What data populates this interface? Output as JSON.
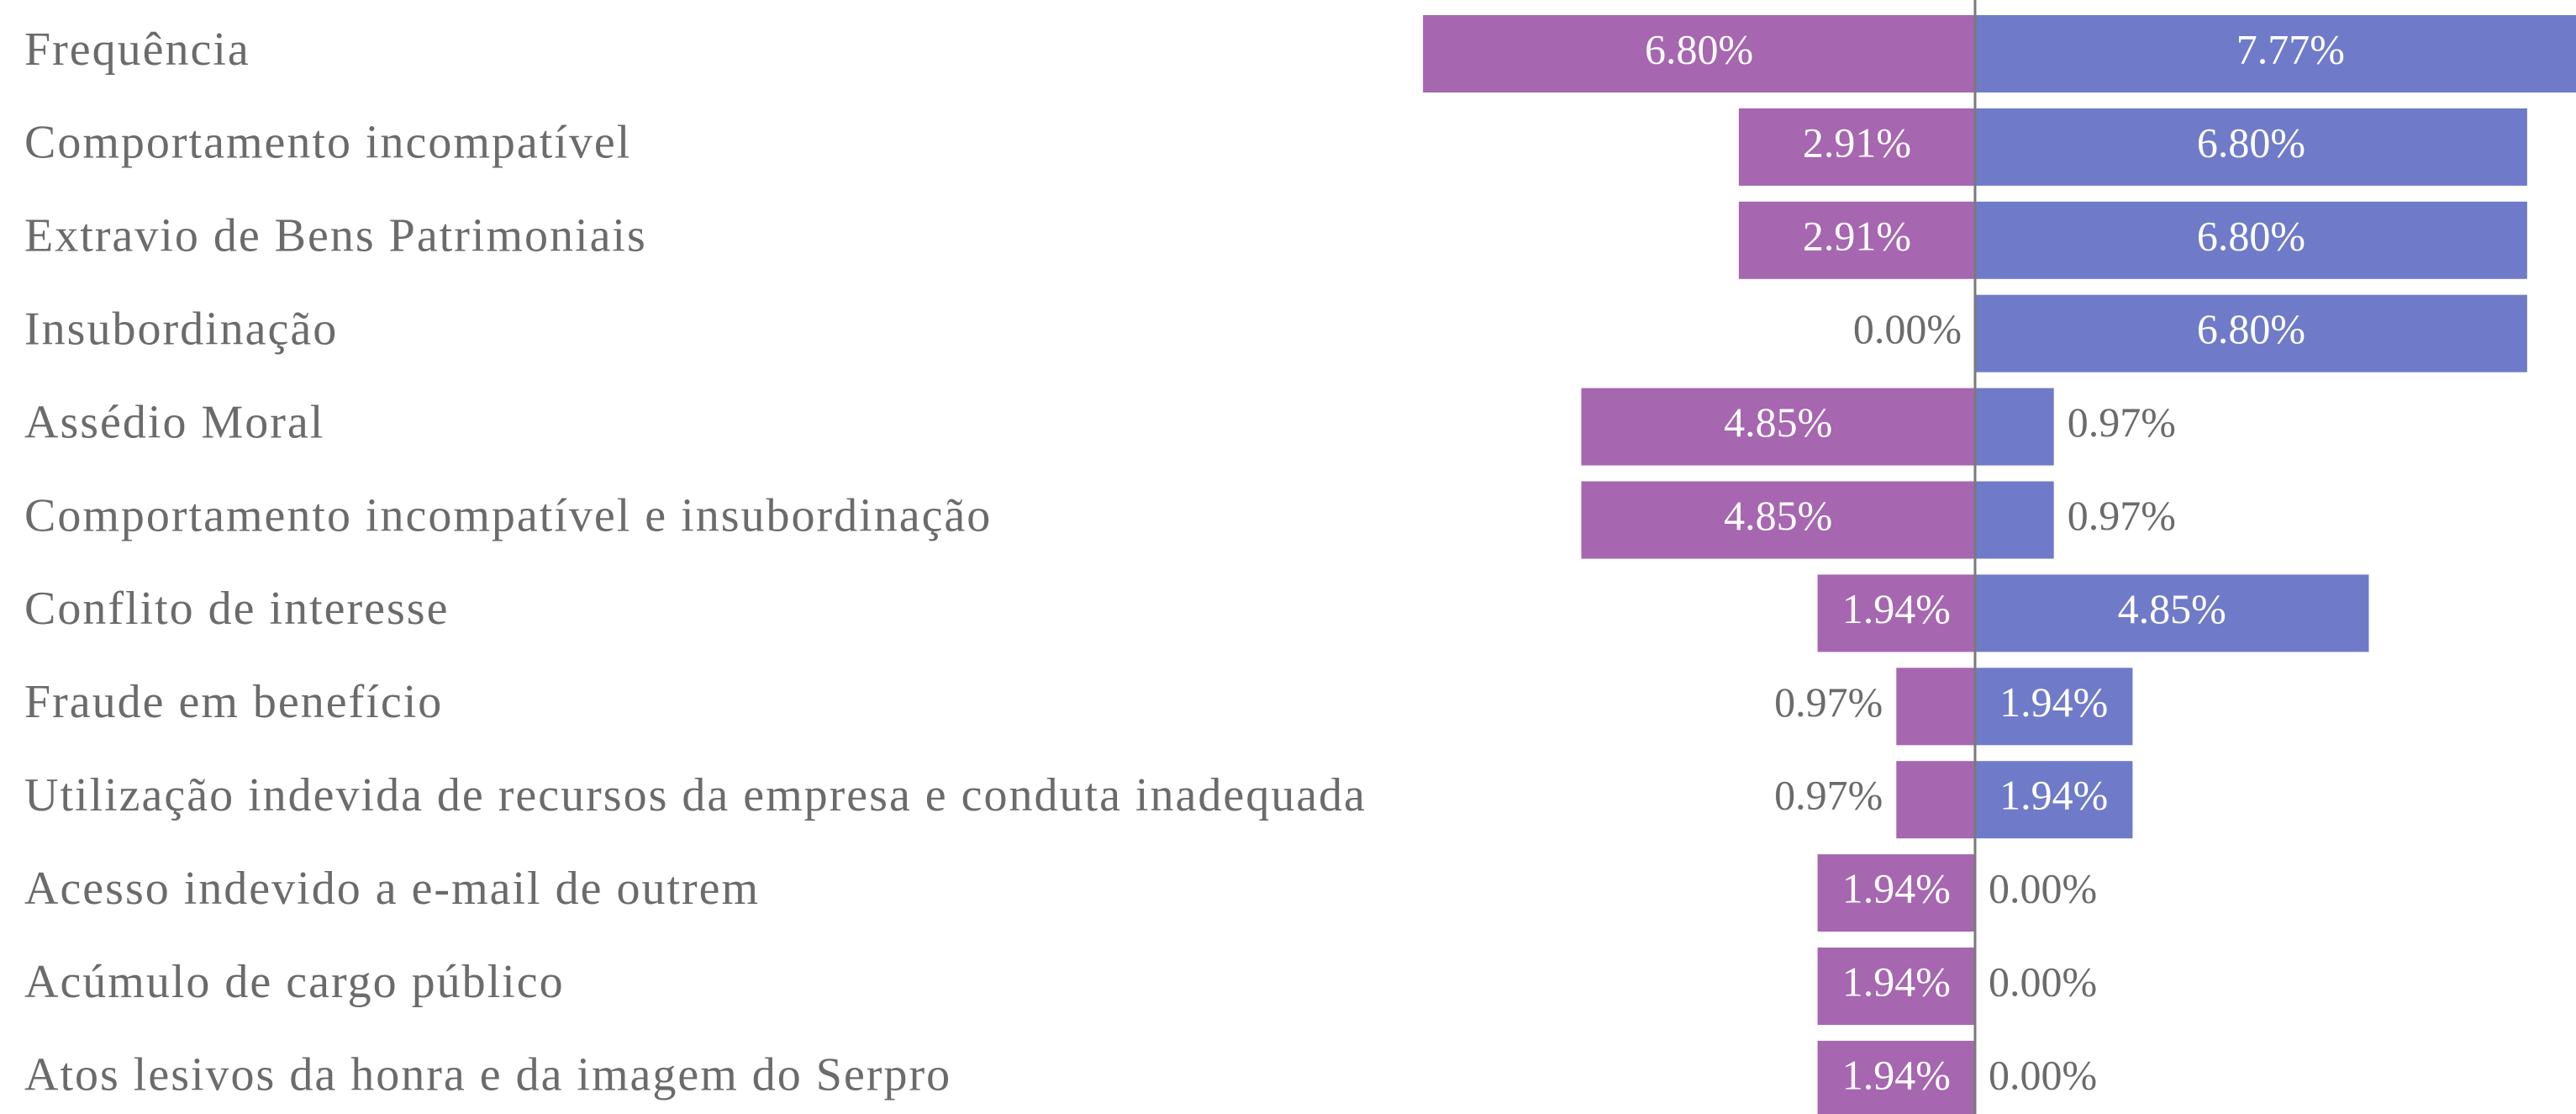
{
  "chart_data": {
    "type": "diverging-bar",
    "categories": [
      "Frequência",
      "Comportamento incompatível",
      "Extravio de Bens Patrimoniais",
      "Insubordinação",
      "Assédio Moral",
      "Comportamento incompatível e insubordinação",
      "Conflito de interesse",
      "Fraude em benefício",
      "Utilização indevida de recursos da empresa e conduta inadequada",
      "Acesso indevido a e-mail de outrem",
      "Acúmulo de cargo público",
      "Atos lesivos da honra e da imagem do Serpro"
    ],
    "series": [
      {
        "color": "#a666b0",
        "values": [
          6.8,
          2.91,
          2.91,
          0.0,
          4.85,
          4.85,
          1.94,
          0.97,
          0.97,
          1.94,
          1.94,
          1.94
        ],
        "value_labels": [
          "6.80%",
          "2.91%",
          "2.91%",
          "0.00%",
          "4.85%",
          "4.85%",
          "1.94%",
          "0.97%",
          "0.97%",
          "1.94%",
          "1.94%",
          "1.94%"
        ]
      },
      {
        "color": "#6f7bc8",
        "values": [
          7.77,
          6.8,
          6.8,
          6.8,
          0.97,
          0.97,
          4.85,
          1.94,
          1.94,
          0.0,
          0.0,
          0.0
        ],
        "value_labels": [
          "7.77%",
          "6.80%",
          "6.80%",
          "6.80%",
          "0.97%",
          "0.97%",
          "4.85%",
          "1.94%",
          "1.94%",
          "0.00%",
          "0.00%",
          "0.00%"
        ]
      }
    ]
  }
}
